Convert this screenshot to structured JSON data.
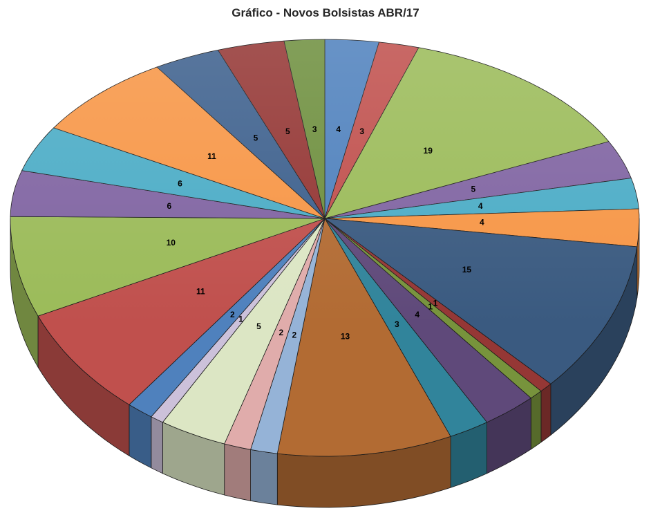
{
  "chart_data": {
    "type": "pie",
    "style": "3d",
    "title": "Gráfico - Novos Bolsistas ABR/17",
    "title_color": "#262626",
    "legend": "none",
    "labels": "values-inside",
    "label_color": "#000000",
    "outline_color": "#1a1a1a",
    "direction": "clockwise",
    "start_angle_deg": 0,
    "total": 145,
    "slices": [
      {
        "value": 4,
        "color": "#4F81BD"
      },
      {
        "value": 3,
        "color": "#C0504D"
      },
      {
        "value": 19,
        "color": "#9BBB59"
      },
      {
        "value": 5,
        "color": "#8064A2"
      },
      {
        "value": 4,
        "color": "#4BACC6"
      },
      {
        "value": 4,
        "color": "#F79646"
      },
      {
        "value": 15,
        "color": "#3A5A80"
      },
      {
        "value": 1,
        "color": "#953735"
      },
      {
        "value": 1,
        "color": "#77933C"
      },
      {
        "value": 4,
        "color": "#5F497A"
      },
      {
        "value": 3,
        "color": "#31849B"
      },
      {
        "value": 13,
        "color": "#B26B33"
      },
      {
        "value": 2,
        "color": "#95B3D7"
      },
      {
        "value": 2,
        "color": "#E0ACAB"
      },
      {
        "value": 5,
        "color": "#DCE6C4"
      },
      {
        "value": 1,
        "color": "#CCC1DA"
      },
      {
        "value": 2,
        "color": "#4F81BD"
      },
      {
        "value": 11,
        "color": "#C0504D"
      },
      {
        "value": 10,
        "color": "#9BBB59"
      },
      {
        "value": 6,
        "color": "#8064A2"
      },
      {
        "value": 6,
        "color": "#4BACC6"
      },
      {
        "value": 11,
        "color": "#F79646"
      },
      {
        "value": 5,
        "color": "#3D608D"
      },
      {
        "value": 5,
        "color": "#943634"
      },
      {
        "value": 3,
        "color": "#6E8F3E"
      }
    ]
  }
}
